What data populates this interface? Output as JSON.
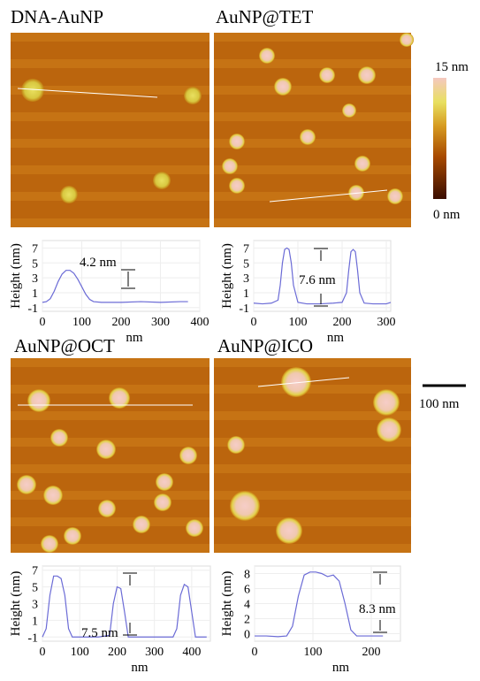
{
  "images": [
    {
      "title": "DNA-AuNP"
    },
    {
      "title": "AuNP@TET"
    },
    {
      "title": "AuNP@OCT"
    },
    {
      "title": "AuNP@ICO"
    }
  ],
  "colorbar": {
    "max_label": "15 nm",
    "min_label": "0 nm"
  },
  "scale_bar": {
    "label": "100 nm"
  },
  "chart_data": [
    {
      "type": "line",
      "x_label": "nm",
      "y_label": "Height (nm)",
      "annotation": "4.2 nm",
      "xlim": [
        0,
        400
      ],
      "ylim": [
        -1.5,
        8
      ],
      "xticks": [
        0,
        100,
        200,
        300,
        400
      ],
      "yticks": [
        -1,
        1,
        3,
        5,
        7
      ],
      "x": [
        0,
        10,
        20,
        30,
        40,
        50,
        60,
        70,
        80,
        90,
        100,
        110,
        120,
        130,
        150,
        200,
        250,
        300,
        350,
        370
      ],
      "series": [
        {
          "color": "#6b6bd6",
          "values": [
            -0.3,
            -0.2,
            0.2,
            1.2,
            2.5,
            3.5,
            4,
            4,
            3.6,
            2.8,
            1.8,
            0.8,
            0.1,
            -0.2,
            -0.3,
            -0.3,
            -0.2,
            -0.3,
            -0.2,
            -0.2
          ]
        }
      ]
    },
    {
      "type": "line",
      "x_label": "nm",
      "y_label": "Height (nm)",
      "annotation": "7.6 nm",
      "xlim": [
        0,
        310
      ],
      "ylim": [
        -1.5,
        8
      ],
      "xticks": [
        0,
        100,
        200,
        300
      ],
      "yticks": [
        -1,
        1,
        3,
        5,
        7
      ],
      "x": [
        0,
        20,
        40,
        55,
        60,
        65,
        70,
        75,
        80,
        85,
        90,
        100,
        120,
        150,
        180,
        200,
        210,
        215,
        220,
        225,
        230,
        235,
        240,
        250,
        270,
        300,
        310
      ],
      "series": [
        {
          "color": "#6b6bd6",
          "values": [
            -0.4,
            -0.5,
            -0.4,
            0,
            2,
            5,
            6.8,
            7,
            6.8,
            5,
            2,
            -0.3,
            -0.5,
            -0.5,
            -0.4,
            -0.3,
            1,
            4,
            6.5,
            6.8,
            6.5,
            4,
            1,
            -0.4,
            -0.5,
            -0.5,
            -0.3
          ]
        }
      ]
    },
    {
      "type": "line",
      "x_label": "nm",
      "y_label": "Height (nm)",
      "annotation": "7.5 nm",
      "xlim": [
        0,
        450
      ],
      "ylim": [
        -1.5,
        7.5
      ],
      "xticks": [
        0,
        100,
        200,
        300,
        400
      ],
      "yticks": [
        -1,
        1,
        3,
        5,
        7
      ],
      "x": [
        0,
        10,
        20,
        30,
        40,
        50,
        60,
        70,
        80,
        100,
        150,
        180,
        190,
        200,
        210,
        220,
        230,
        300,
        350,
        360,
        370,
        380,
        390,
        400,
        410,
        440
      ],
      "series": [
        {
          "color": "#6b6bd6",
          "values": [
            -1,
            0,
            4,
            6.3,
            6.3,
            6,
            4,
            0,
            -1,
            -1,
            -1,
            -0.8,
            3,
            5,
            4.8,
            2,
            -1,
            -1,
            -1,
            0,
            4,
            5.3,
            5,
            2,
            -1,
            -1
          ]
        }
      ]
    },
    {
      "type": "line",
      "x_label": "nm",
      "y_label": "Height (nm)",
      "annotation": "8.3 nm",
      "xlim": [
        0,
        250
      ],
      "ylim": [
        -1,
        9
      ],
      "xticks": [
        0,
        100,
        200
      ],
      "yticks": [
        0,
        2,
        4,
        6,
        8
      ],
      "x": [
        0,
        20,
        40,
        55,
        65,
        75,
        85,
        95,
        105,
        115,
        125,
        135,
        145,
        155,
        165,
        175,
        200,
        220
      ],
      "series": [
        {
          "color": "#6b6bd6",
          "values": [
            -0.3,
            -0.3,
            -0.4,
            -0.3,
            1,
            5,
            7.8,
            8.2,
            8.2,
            8,
            7.6,
            7.8,
            7,
            4,
            0.5,
            -0.3,
            -0.3,
            -0.3
          ]
        }
      ]
    }
  ]
}
